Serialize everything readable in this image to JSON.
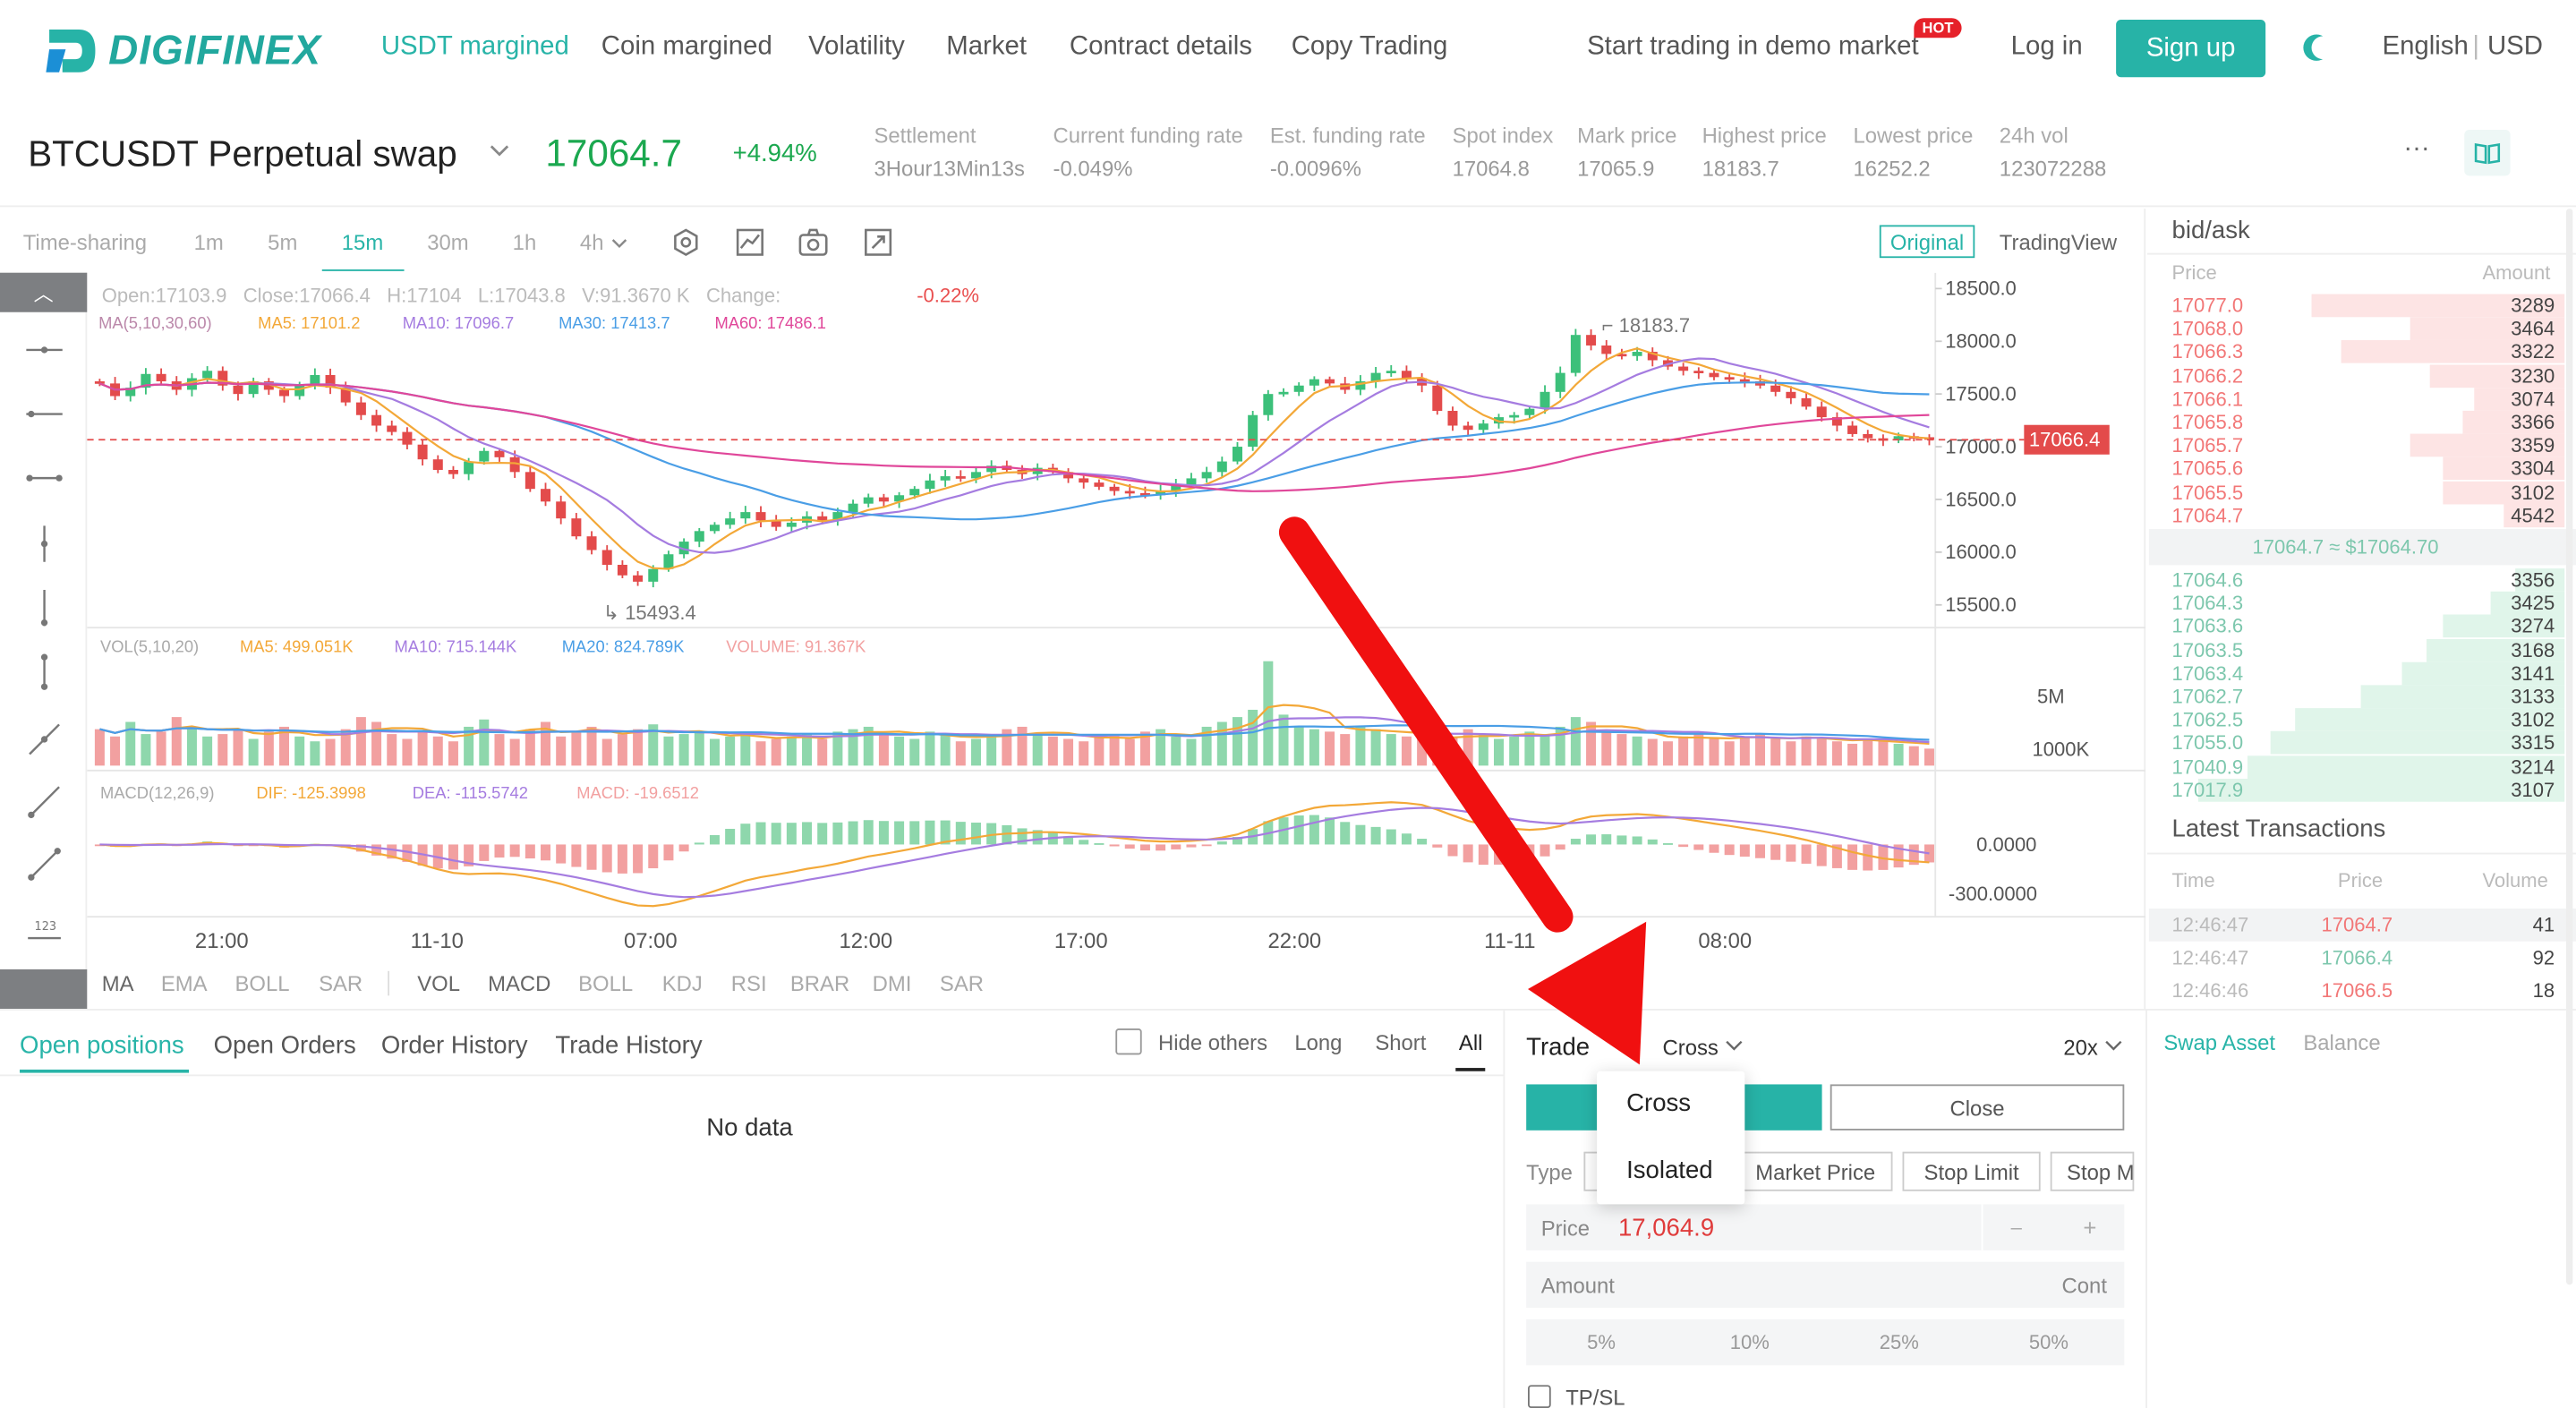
{
  "brand": {
    "name": "DIGIFINEX"
  },
  "nav": {
    "items": [
      "USDT margined",
      "Coin margined",
      "Volatility",
      "Market",
      "Contract details",
      "Copy Trading"
    ],
    "demo": "Start trading in demo market",
    "hot": "HOT",
    "login": "Log in",
    "signup": "Sign up",
    "lang": "English",
    "currency": "USD",
    "sep": "|"
  },
  "ticker": {
    "symbol": "BTCUSDT Perpetual swap",
    "last": "17064.7",
    "change": "+4.94%",
    "stats": [
      {
        "label": "Settlement",
        "value": "3Hour13Min13s"
      },
      {
        "label": "Current funding rate",
        "value": "-0.049%"
      },
      {
        "label": "Est. funding rate",
        "value": "-0.0096%"
      },
      {
        "label": "Spot index",
        "value": "17064.8"
      },
      {
        "label": "Mark price",
        "value": "17065.9"
      },
      {
        "label": "Highest price",
        "value": "18183.7"
      },
      {
        "label": "Lowest price",
        "value": "16252.2"
      },
      {
        "label": "24h vol",
        "value": "123072288"
      }
    ],
    "more": "···"
  },
  "chart_toolbar": {
    "timeframes": [
      "Time-sharing",
      "1m",
      "5m",
      "15m",
      "30m",
      "1h",
      "4h"
    ],
    "active": "15m",
    "original": "Original",
    "tradingview": "TradingView"
  },
  "chart_legend": {
    "ohlc": "Open:17103.9   Close:17066.4   H:17104   L:17043.8   V:91.3670 K   Change:",
    "change": "-0.22%",
    "ma_title": "MA(5,10,30,60)",
    "ma5": "MA5: 17101.2",
    "ma10": "MA10: 17096.7",
    "ma30": "MA30: 17413.7",
    "ma60": "MA60: 17486.1",
    "vol_title": "VOL(5,10,20)",
    "vma5": "MA5: 499.051K",
    "vma10": "MA10: 715.144K",
    "vma20": "MA20: 824.789K",
    "volume": "VOLUME: 91.367K",
    "macd_title": "MACD(12,26,9)",
    "dif": "DIF: -125.3998",
    "dea": "DEA: -115.5742",
    "macd": "MACD: -19.6512"
  },
  "chart_data": {
    "type": "candlestick",
    "y_ticks": [
      "18500.0",
      "18000.0",
      "17500.0",
      "17000.0",
      "16500.0",
      "16000.0",
      "15500.0"
    ],
    "x_ticks": [
      "21:00",
      "11-10",
      "07:00",
      "12:00",
      "17:00",
      "22:00",
      "11-11",
      "08:00"
    ],
    "high_label": "18183.7",
    "low_label": "15493.4",
    "current_price": "17066.4",
    "vol_ticks": [
      "5M",
      "1000K"
    ],
    "macd_ticks": [
      "0.0000",
      "-300.0000"
    ],
    "ylim": [
      15300,
      18650
    ],
    "close": [
      17600,
      17480,
      17560,
      17690,
      17620,
      17540,
      17650,
      17720,
      17580,
      17500,
      17620,
      17540,
      17480,
      17590,
      17680,
      17560,
      17420,
      17300,
      17200,
      17140,
      17020,
      16880,
      16780,
      16740,
      16860,
      16960,
      16900,
      16760,
      16600,
      16480,
      16320,
      16150,
      16020,
      15880,
      15780,
      15720,
      15840,
      15980,
      16100,
      16200,
      16260,
      16320,
      16380,
      16300,
      16240,
      16280,
      16340,
      16300,
      16380,
      16460,
      16520,
      16480,
      16540,
      16600,
      16680,
      16720,
      16700,
      16760,
      16820,
      16780,
      16740,
      16800,
      16760,
      16700,
      16660,
      16620,
      16580,
      16560,
      16540,
      16580,
      16640,
      16700,
      16760,
      16860,
      17000,
      17300,
      17500,
      17520,
      17580,
      17640,
      17600,
      17540,
      17620,
      17700,
      17720,
      17650,
      17580,
      17340,
      17200,
      17160,
      17220,
      17280,
      17300,
      17360,
      17520,
      17700,
      18060,
      17960,
      17880,
      17860,
      17900,
      17820,
      17760,
      17720,
      17700,
      17660,
      17640,
      17620,
      17580,
      17520,
      17460,
      17380,
      17280,
      17200,
      17120,
      17080,
      17060,
      17100,
      17090,
      17066
    ],
    "volume": [
      1.5,
      1.2,
      1.8,
      1.3,
      1.4,
      2.0,
      1.6,
      1.2,
      1.3,
      1.5,
      1.1,
      1.4,
      1.6,
      1.2,
      1.0,
      1.1,
      1.5,
      2.0,
      1.8,
      1.3,
      1.1,
      1.4,
      1.2,
      1.0,
      1.6,
      1.9,
      1.3,
      1.1,
      1.5,
      1.8,
      1.2,
      1.4,
      1.6,
      1.1,
      1.3,
      1.5,
      1.7,
      1.2,
      1.3,
      1.4,
      1.1,
      1.2,
      1.3,
      1.0,
      1.1,
      1.2,
      1.3,
      1.1,
      1.4,
      1.5,
      1.6,
      1.3,
      1.2,
      1.1,
      1.4,
      1.3,
      1.0,
      1.1,
      1.2,
      1.5,
      1.6,
      1.3,
      1.2,
      1.1,
      1.0,
      1.2,
      1.3,
      1.1,
      1.4,
      1.5,
      1.2,
      1.1,
      1.6,
      1.8,
      2.0,
      2.3,
      4.3,
      2.1,
      1.6,
      1.5,
      1.4,
      1.3,
      1.6,
      1.5,
      1.3,
      1.2,
      1.1,
      1.0,
      1.2,
      1.5,
      1.3,
      1.1,
      1.2,
      1.4,
      1.3,
      1.6,
      2.0,
      1.8,
      1.4,
      1.3,
      1.2,
      1.1,
      1.0,
      1.2,
      1.3,
      1.1,
      1.0,
      1.2,
      1.3,
      1.1,
      1.0,
      1.2,
      1.1,
      1.0,
      0.9,
      1.1,
      1.0,
      0.9,
      0.8,
      0.7
    ]
  },
  "orderbook": {
    "title": "bid/ask",
    "price_h": "Price",
    "amount_h": "Amount",
    "asks": [
      [
        "17077.0",
        "3289",
        0.62
      ],
      [
        "17068.0",
        "3464",
        0.38
      ],
      [
        "17066.3",
        "3322",
        0.55
      ],
      [
        "17066.2",
        "3230",
        0.33
      ],
      [
        "17066.1",
        "3074",
        0.22
      ],
      [
        "17065.8",
        "3366",
        0.25
      ],
      [
        "17065.7",
        "3359",
        0.38
      ],
      [
        "17065.6",
        "3304",
        0.3
      ],
      [
        "17065.5",
        "3102",
        0.3
      ],
      [
        "17064.7",
        "4542",
        0.15
      ]
    ],
    "mid": "17064.7 ≈ $17064.70",
    "bids": [
      [
        "17064.6",
        "3356",
        0.12
      ],
      [
        "17064.3",
        "3425",
        0.18
      ],
      [
        "17063.6",
        "3274",
        0.3
      ],
      [
        "17063.5",
        "3168",
        0.34
      ],
      [
        "17063.4",
        "3141",
        0.4
      ],
      [
        "17062.7",
        "3133",
        0.5
      ],
      [
        "17062.5",
        "3102",
        0.66
      ],
      [
        "17055.0",
        "3315",
        0.72
      ],
      [
        "17040.9",
        "3214",
        0.78
      ],
      [
        "17017.9",
        "3107",
        0.9
      ]
    ]
  },
  "latest": {
    "title": "Latest Transactions",
    "time_h": "Time",
    "price_h": "Price",
    "volume_h": "Volume",
    "rows": [
      [
        "12:46:47",
        "17064.7",
        "41",
        "down"
      ],
      [
        "12:46:47",
        "17066.4",
        "92",
        "up"
      ],
      [
        "12:46:46",
        "17066.5",
        "18",
        "down"
      ]
    ]
  },
  "positions": {
    "tabs": [
      "Open positions",
      "Open Orders",
      "Order History",
      "Trade History"
    ],
    "hide_others": "Hide others",
    "long": "Long",
    "short": "Short",
    "all": "All",
    "empty": "No data"
  },
  "trade": {
    "title": "Trade",
    "margin_mode": "Cross",
    "leverage": "20x",
    "close": "Close",
    "type_label": "Type",
    "order_types": [
      "Market Price",
      "Stop Limit",
      "Stop M"
    ],
    "price_label": "Price",
    "price_value": "17,064.9",
    "minus": "–",
    "plus": "+",
    "amount_label": "Amount",
    "amount_unit": "Cont",
    "pcts": [
      "5%",
      "10%",
      "25%",
      "50%"
    ],
    "tpsl": "TP/SL",
    "dropdown": [
      "Cross",
      "Isolated"
    ]
  },
  "asset": {
    "tabs": [
      "Swap Asset",
      "Balance"
    ]
  }
}
